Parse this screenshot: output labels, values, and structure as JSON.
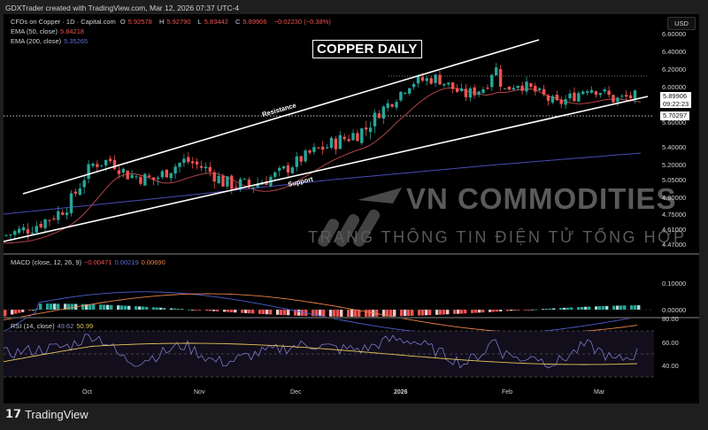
{
  "credit": "GDXTrader created with TradingView.com, Mar 12, 2026 07:37 UTC-4",
  "symbol": {
    "name": "CFDs on Copper · 1D · Capital.com",
    "o_label": "O",
    "o": "5.92578",
    "h_label": "H",
    "h": "5.92790",
    "l_label": "L",
    "l": "5.83442",
    "c_label": "C",
    "c": "5.89906",
    "change": "−0.02230 (−0.38%)"
  },
  "ema50": {
    "label": "EMA (50, close)",
    "value": "5.84218"
  },
  "ema200": {
    "label": "EMA (200, close)",
    "value": "5.35265"
  },
  "title": "COPPER DAILY",
  "annotations": {
    "resistance": "Resistance",
    "support": "Support"
  },
  "watermark": {
    "line1": "VN COMMODITIES",
    "line2": "TRANG THÔNG TIN ĐIỆN TỬ TỔNG HỢP"
  },
  "price_axis": {
    "currency": "USD",
    "ticks": [
      "6.60000",
      "6.40000",
      "6.20000",
      "6.00000",
      "5.80000",
      "5.60000",
      "5.40000",
      "5.20000",
      "5.05000",
      "4.90000",
      "4.75000",
      "4.61000",
      "4.47000"
    ],
    "last_price": "5.89906",
    "countdown": "09:22:23",
    "level_price": "5.70297"
  },
  "macd": {
    "label": "MACD (close, 12, 26, 9)",
    "hist": "−0.00471",
    "macd": "0.00219",
    "signal": "0.00690",
    "ticks": [
      "0.10000",
      "0.00000"
    ]
  },
  "rsi": {
    "label": "RSI (14, close)",
    "rsi": "49.62",
    "ma": "50.99",
    "ticks": [
      "80.00",
      "60.00",
      "40.00"
    ]
  },
  "x_axis": [
    "Oct",
    "Nov",
    "Dec",
    "2026",
    "Feb",
    "Mar"
  ],
  "brand": "TradingView",
  "colors": {
    "up": "#26a69a",
    "down": "#ef5350",
    "ema50": "#b2454a",
    "ema200": "#4a4ab8",
    "macd": "#4a5fd0",
    "signal": "#e8834b",
    "rsi": "#7e78c8",
    "rsi_ma": "#e6c55a"
  },
  "chart_data": [
    {
      "type": "candlestick",
      "title": "COPPER DAILY",
      "subtitle": "CFDs on Copper · 1D · Capital.com",
      "x_ticks": [
        "Oct",
        "Nov",
        "Dec",
        "2026",
        "Feb",
        "Mar"
      ],
      "ylim": [
        4.47,
        6.65
      ],
      "y_ticks": [
        4.47,
        4.61,
        4.75,
        4.9,
        5.05,
        5.2,
        5.4,
        5.6,
        5.8,
        6.0,
        6.2,
        6.4,
        6.6
      ],
      "ohlc_last": {
        "open": 5.92578,
        "high": 5.9279,
        "low": 5.83442,
        "close": 5.89906,
        "change": -0.0223,
        "change_pct": -0.38
      },
      "series": [
        {
          "name": "EMA 50",
          "last": 5.84218
        },
        {
          "name": "EMA 200",
          "last": 5.35265
        }
      ],
      "approx_close_path": {
        "x": [
          "Sep",
          "Oct",
          "Nov",
          "Dec",
          "2026",
          "late Jan",
          "Feb",
          "Mar",
          "Mar 12"
        ],
        "y": [
          4.55,
          5.05,
          5.1,
          5.35,
          5.85,
          6.4,
          5.8,
          5.95,
          5.9
        ]
      },
      "annotations": [
        "Resistance (upper channel line)",
        "Support (lower channel line)",
        "dotted level 6.15",
        "dotted level 5.70297"
      ]
    },
    {
      "type": "line+bar",
      "title": "MACD (close, 12, 26, 9)",
      "values": {
        "histogram": -0.00471,
        "macd": 0.00219,
        "signal": 0.0069
      },
      "y_ticks": [
        0.0,
        0.1
      ]
    },
    {
      "type": "line",
      "title": "RSI (14, close)",
      "values": {
        "rsi": 49.62,
        "rsi_ma": 50.99
      },
      "y_ticks": [
        40,
        60,
        80
      ],
      "bands": [
        70,
        50,
        30
      ]
    }
  ]
}
